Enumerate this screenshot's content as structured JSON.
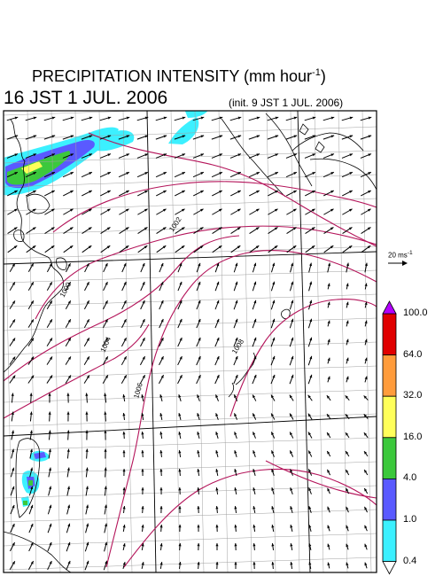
{
  "header": {
    "title": "PRECIPITATION INTENSITY (mm hour",
    "title_sup": "-1",
    "title_close": ")",
    "date": "16 JST 1 JUL. 2006",
    "init": "(init. 9 JST 1 JUL. 2006)"
  },
  "vector_scale": {
    "label": "20 ms",
    "sup": "-1"
  },
  "isobar_labels": [
    "1000",
    "1002",
    "1004",
    "1006",
    "1008"
  ],
  "colorbar": {
    "levels": [
      "100.0",
      "64.0",
      "32.0",
      "16.0",
      "4.0",
      "1.0",
      "0.4"
    ],
    "colors": [
      "#e00000",
      "#ff9c3c",
      "#ffff5a",
      "#3cc83c",
      "#5a5aff",
      "#3cf0ff"
    ],
    "over_color": "#b400ff",
    "under_color": "#ffffff"
  },
  "colors": {
    "isobar": "#b4145a",
    "coast": "#000000",
    "grid": "#a0a0a0",
    "arrow": "#000000"
  }
}
